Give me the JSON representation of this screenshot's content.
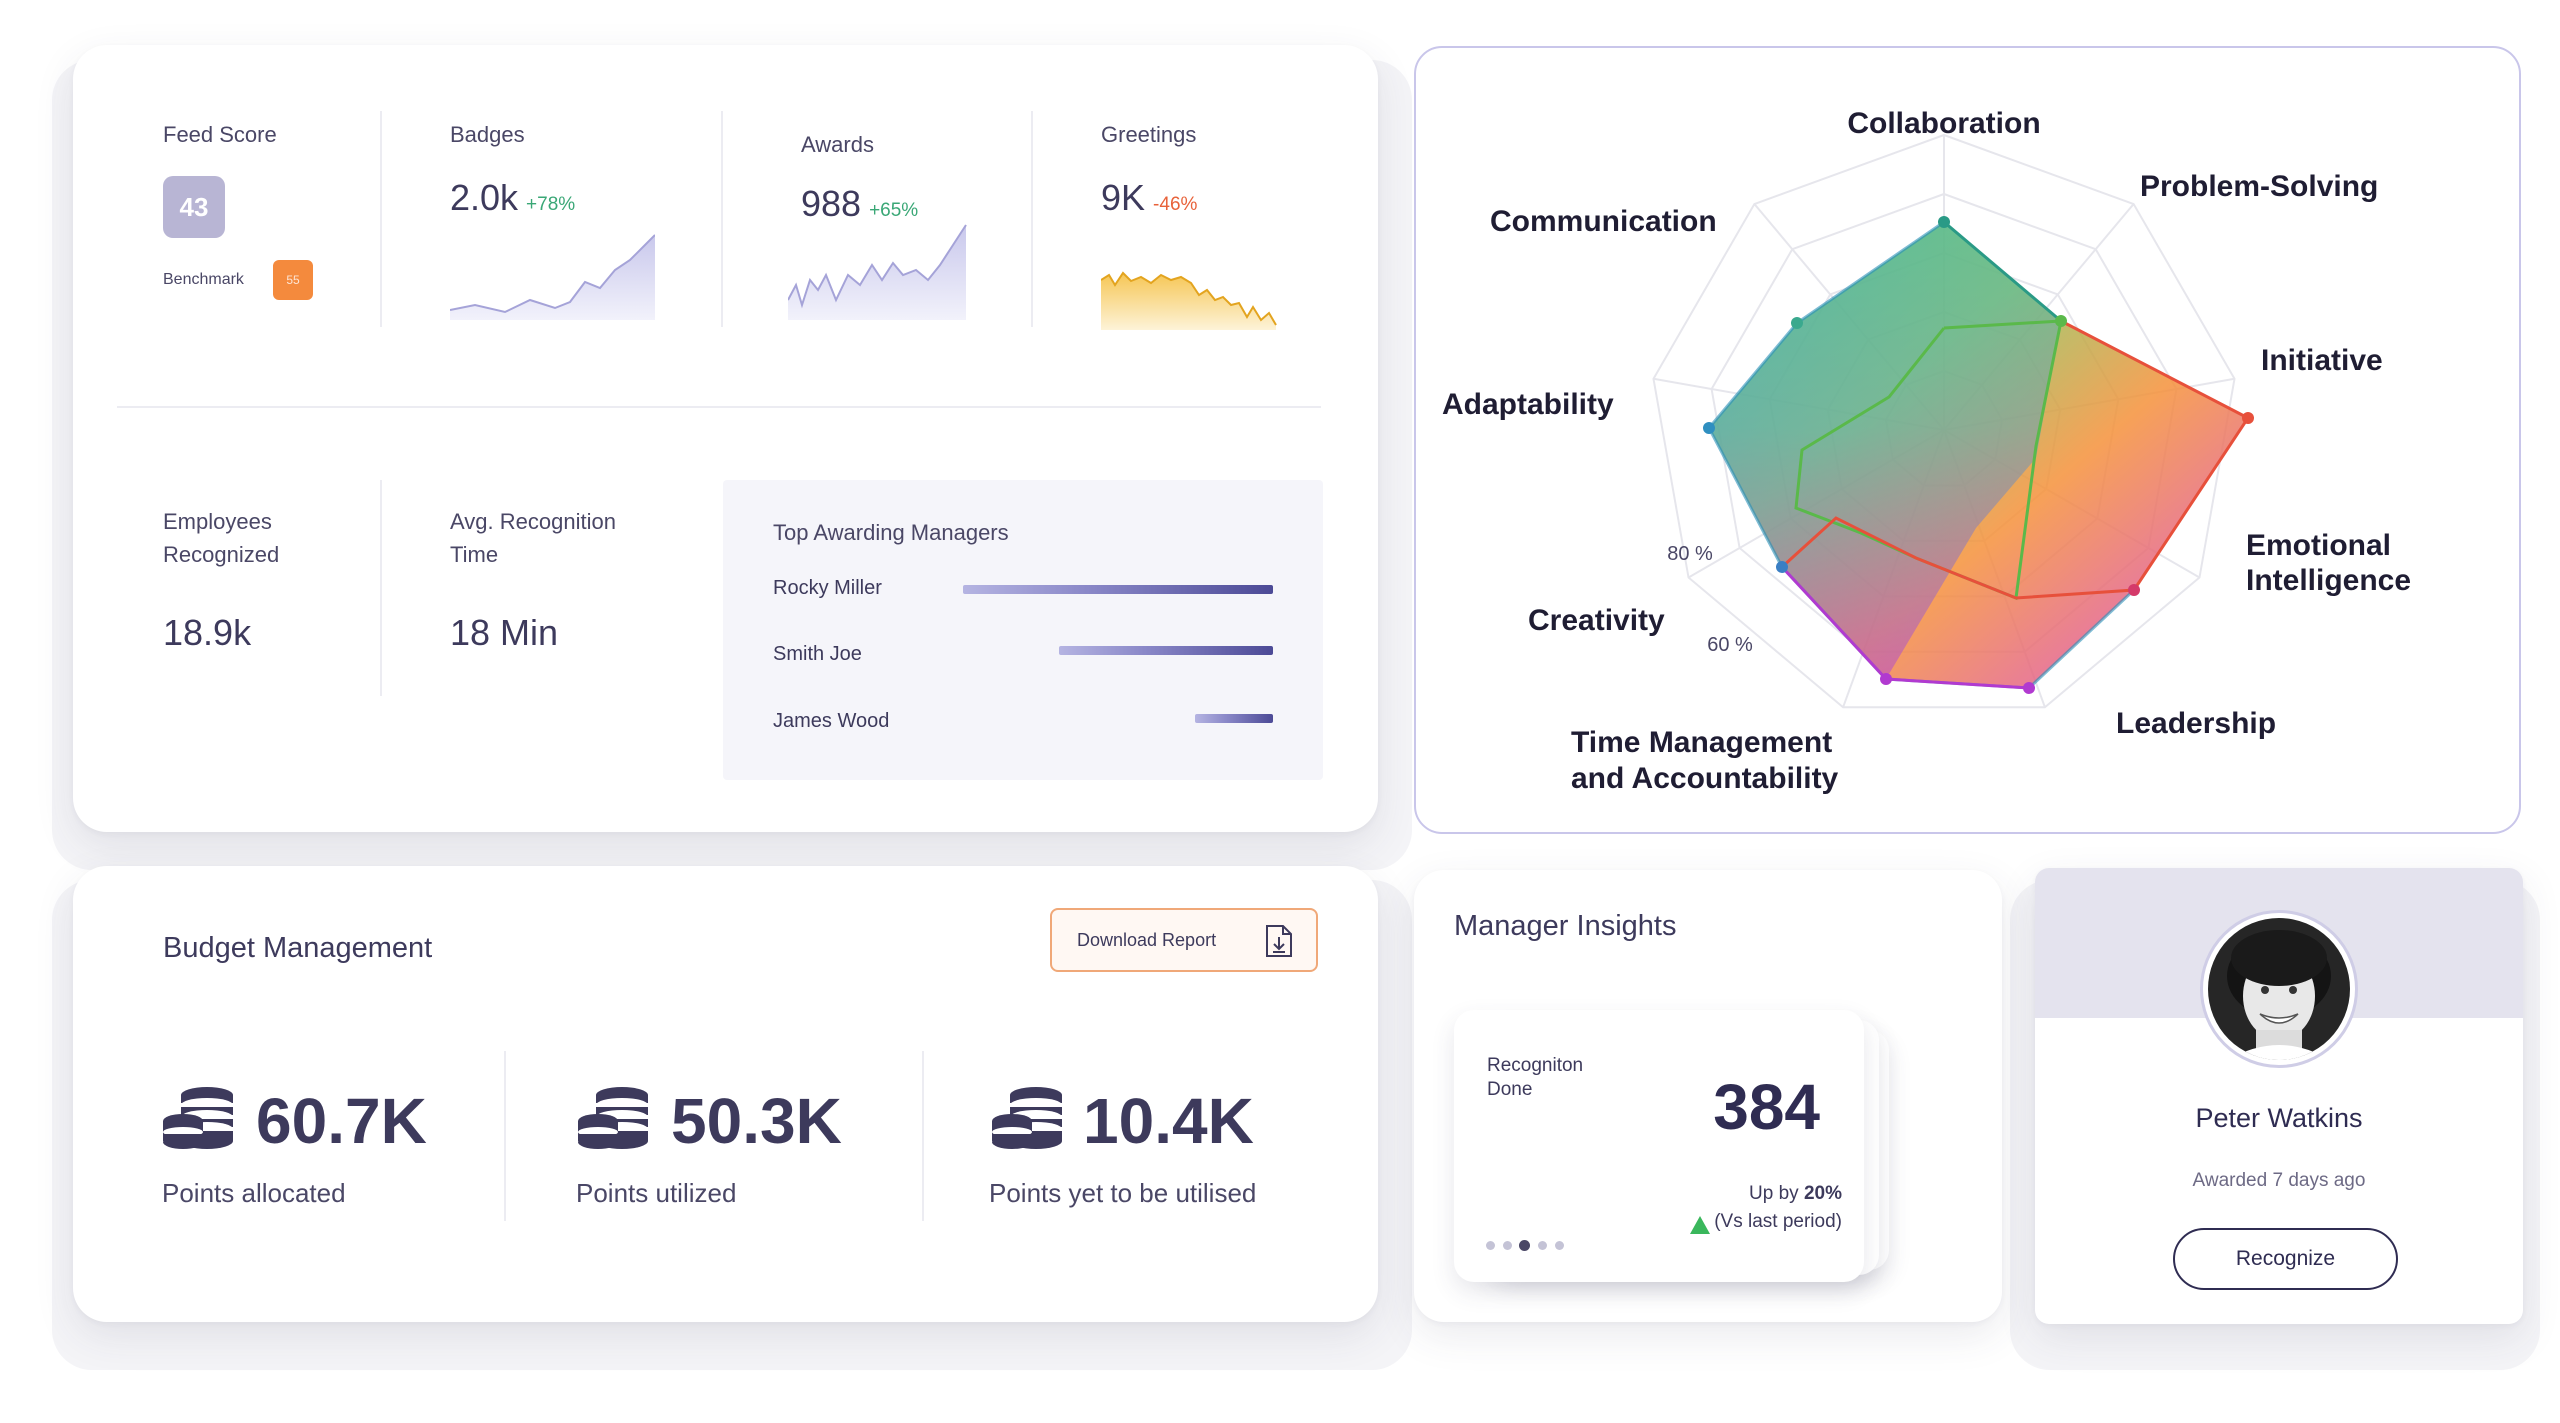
{
  "stats": {
    "feed_score": {
      "label": "Feed Score",
      "value": "43",
      "benchmark_label": "Benchmark",
      "benchmark_value": "55"
    },
    "badges": {
      "label": "Badges",
      "value": "2.0k",
      "delta": "+78%"
    },
    "awards": {
      "label": "Awards",
      "value": "988",
      "delta": "+65%"
    },
    "greetings": {
      "label": "Greetings",
      "value": "9K",
      "delta": "-46%"
    },
    "employees": {
      "label_line1": "Employees",
      "label_line2": "Recognized",
      "value": "18.9k"
    },
    "avg_time": {
      "label_line1": "Avg. Recognition",
      "label_line2": "Time",
      "value": "18 Min"
    },
    "top_managers": {
      "title": "Top Awarding Managers",
      "items": [
        {
          "name": "Rocky Miller",
          "share": 1.0
        },
        {
          "name": "Smith Joe",
          "share": 0.69
        },
        {
          "name": "James Wood",
          "share": 0.25
        }
      ]
    }
  },
  "radar": {
    "axes": [
      "Collaboration",
      "Problem-Solving",
      "Initiative",
      "Emotional Intelligence",
      "Leadership",
      "Time Management and Accountability",
      "Creativity",
      "Adaptability",
      "Communication"
    ],
    "ring_labels": [
      "80 %",
      "60 %"
    ]
  },
  "budget": {
    "title": "Budget Management",
    "download_label": "Download Report",
    "items": [
      {
        "value": "60.7K",
        "label": "Points allocated"
      },
      {
        "value": "50.3K",
        "label": "Points utilized"
      },
      {
        "value": "10.4K",
        "label": "Points yet to be utilised"
      }
    ]
  },
  "insights": {
    "title": "Manager Insights",
    "metric_label": "Recogniton Done",
    "metric_value": "384",
    "up_prefix": "Up by ",
    "up_value": "20%",
    "period": "(Vs last period)"
  },
  "profile": {
    "name": "Peter Watkins",
    "awarded": "Awarded 7 days ago",
    "button": "Recognize"
  },
  "colors": {
    "accent_purple": "#6a67b8",
    "positive": "#3aa776",
    "negative": "#e8623a",
    "orange": "#f48a3d"
  }
}
